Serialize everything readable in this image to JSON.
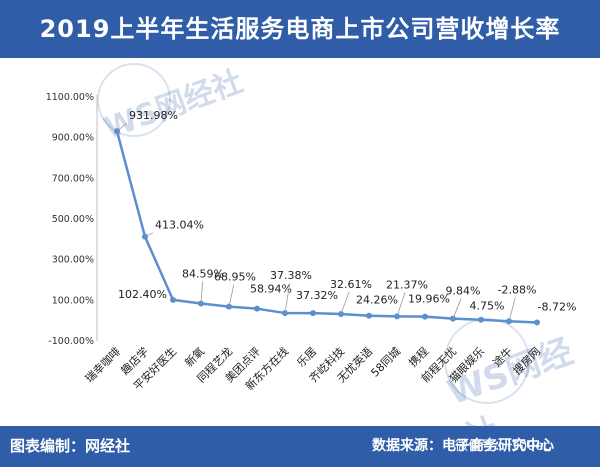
{
  "header": {
    "title": "2019上半年生活服务电商上市公司营收增长率"
  },
  "footer": {
    "credit": "图表编制：网经社",
    "source": "数据来源：电子商务研究中心",
    "wechat": "微信号：i100ec"
  },
  "watermark": {
    "text": "WS网经社"
  },
  "colors": {
    "accent": "#2f5da8",
    "series": "#5b8fcf"
  },
  "chart_data": {
    "type": "line",
    "title": "2019上半年生活服务电商上市公司营收增长率",
    "categories": [
      "瑞幸咖啡",
      "趣店学",
      "平安好医生",
      "新氧",
      "同程艺龙",
      "美团点评",
      "新东方在线",
      "乐居",
      "齐屹科技",
      "无忧英语",
      "58同城",
      "携程",
      "前程无忧",
      "猫眼娱乐",
      "途牛",
      "搜房网"
    ],
    "series": [
      {
        "values": [
          931.98,
          413.04,
          102.4,
          84.59,
          68.95,
          58.94,
          37.38,
          37.32,
          32.61,
          24.26,
          21.37,
          19.96,
          9.84,
          4.75,
          -2.88,
          -8.72
        ],
        "labels": [
          "931.98%",
          "413.04%",
          "102.40%",
          "84.59%",
          "68.95%",
          "58.94%",
          "37.38%",
          "37.32%",
          "32.61%",
          "24.26%",
          "21.37%",
          "19.96%",
          "9.84%",
          "4.75%",
          "-2.88%",
          "-8.72%"
        ]
      }
    ],
    "yticks": [
      "1100.00%",
      "900.00%",
      "700.00%",
      "500.00%",
      "300.00%",
      "100.00%",
      "-100.00%"
    ],
    "ytick_values": [
      1100,
      900,
      700,
      500,
      300,
      100,
      -100
    ],
    "ylim": [
      -100,
      1100
    ],
    "grid": false,
    "legend": "none"
  }
}
